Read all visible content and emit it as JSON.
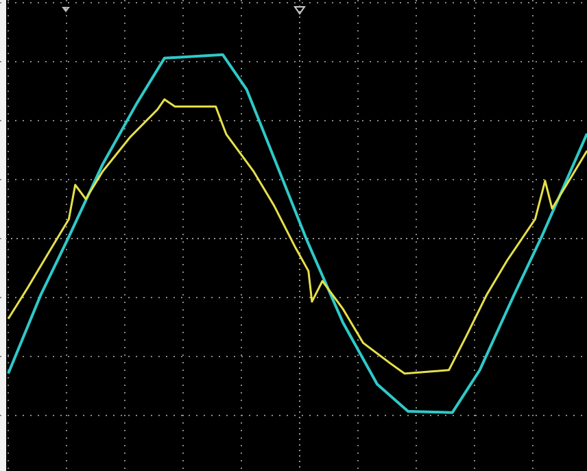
{
  "chart_data": {
    "type": "line",
    "xlim": [
      -5,
      5
    ],
    "ylim": [
      -4,
      4
    ],
    "xticks": [
      -5,
      -4,
      -3,
      -2,
      -1,
      0,
      1,
      2,
      3,
      4,
      5
    ],
    "yticks": [
      -4,
      -3,
      -2,
      -1,
      0,
      1,
      2,
      3,
      4
    ],
    "grid": true,
    "series": [
      {
        "color": "#2fc9c9",
        "x": [
          -5.0,
          -4.44,
          -3.96,
          -3.38,
          -2.79,
          -2.32,
          -1.32,
          -0.91,
          -0.44,
          0.12,
          0.74,
          1.33,
          1.86,
          2.62,
          3.09,
          3.68,
          4.15,
          4.93
        ],
        "values": [
          -2.29,
          -0.95,
          0.03,
          1.26,
          2.3,
          3.06,
          3.12,
          2.53,
          1.37,
          -0.02,
          -1.42,
          -2.47,
          -2.93,
          -2.95,
          -2.23,
          -0.95,
          0.03,
          1.78
        ]
      },
      {
        "color": "#e6e04a",
        "x": [
          -5.0,
          -4.67,
          -4.32,
          -3.96,
          -3.85,
          -3.67,
          -3.38,
          -2.91,
          -2.44,
          -2.32,
          -2.14,
          -1.44,
          -1.26,
          -0.79,
          -0.44,
          -0.08,
          0.15,
          0.21,
          0.39,
          0.74,
          1.09,
          1.56,
          1.8,
          2.56,
          2.86,
          3.21,
          3.56,
          4.04,
          4.21,
          4.33,
          4.62,
          4.93
        ],
        "values": [
          -1.36,
          -0.84,
          -0.26,
          0.33,
          0.91,
          0.67,
          1.14,
          1.72,
          2.19,
          2.36,
          2.24,
          2.24,
          1.77,
          1.14,
          0.56,
          -0.14,
          -0.55,
          -1.07,
          -0.72,
          -1.19,
          -1.77,
          -2.12,
          -2.29,
          -2.23,
          -1.65,
          -0.95,
          -0.37,
          0.33,
          0.98,
          0.51,
          0.98,
          1.49
        ]
      }
    ]
  }
}
